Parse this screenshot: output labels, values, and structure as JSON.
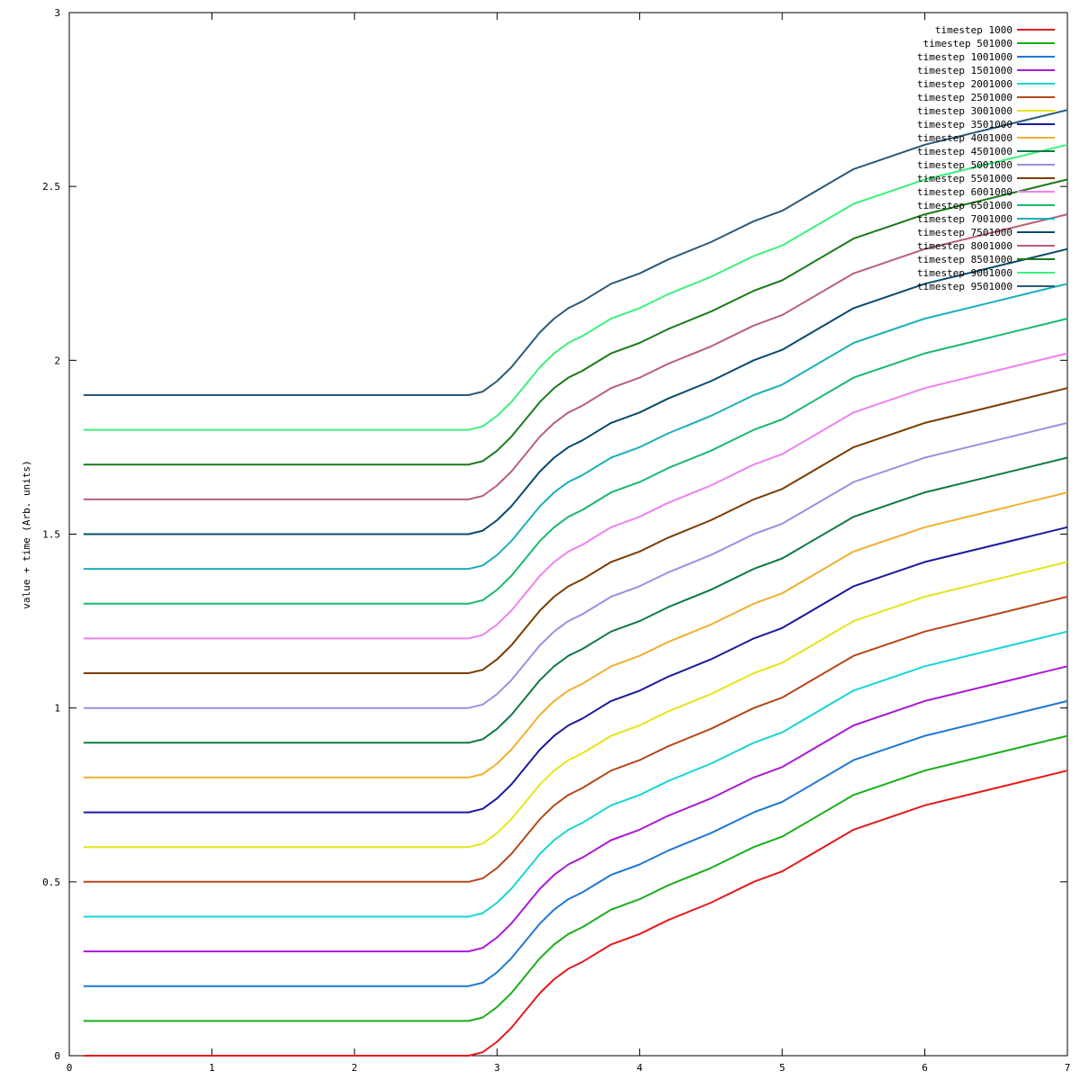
{
  "chart_data": {
    "type": "line",
    "title": "",
    "xlabel": "",
    "ylabel": "value + time (Arb. units)",
    "xlim": [
      0,
      7
    ],
    "ylim": [
      0,
      3
    ],
    "xticks": [
      "0",
      "1",
      "2",
      "3",
      "4",
      "5",
      "6",
      "7"
    ],
    "yticks": [
      "0",
      "0.5",
      "1",
      "1.5",
      "2",
      "2.5",
      "3"
    ],
    "grid": false,
    "legend_position": "top-right",
    "x": [
      0.1,
      2.8,
      2.9,
      3.0,
      3.1,
      3.2,
      3.3,
      3.4,
      3.5,
      3.6,
      3.8,
      4.0,
      4.2,
      4.5,
      4.8,
      5.0,
      5.5,
      6.0,
      6.5,
      7.0
    ],
    "base_curve": [
      0.0,
      0.0,
      0.01,
      0.04,
      0.08,
      0.13,
      0.18,
      0.22,
      0.25,
      0.27,
      0.32,
      0.35,
      0.39,
      0.44,
      0.5,
      0.53,
      0.65,
      0.72,
      0.77,
      0.82
    ],
    "series": [
      {
        "name": "timestep 1000",
        "offset": 0.0,
        "color": "#e41a1c"
      },
      {
        "name": "timestep 501000",
        "offset": 0.1,
        "color": "#1aaf1a"
      },
      {
        "name": "timestep 1001000",
        "offset": 0.2,
        "color": "#1f78d4"
      },
      {
        "name": "timestep 1501000",
        "offset": 0.3,
        "color": "#aa1ad4"
      },
      {
        "name": "timestep 2001000",
        "offset": 0.4,
        "color": "#1ad4d4"
      },
      {
        "name": "timestep 2501000",
        "offset": 0.5,
        "color": "#b5471a"
      },
      {
        "name": "timestep 3001000",
        "offset": 0.6,
        "color": "#e5e51a"
      },
      {
        "name": "timestep 3501000",
        "offset": 0.7,
        "color": "#1a1a9e"
      },
      {
        "name": "timestep 4001000",
        "offset": 0.8,
        "color": "#f0b030"
      },
      {
        "name": "timestep 4501000",
        "offset": 0.9,
        "color": "#0f7a44"
      },
      {
        "name": "timestep 5001000",
        "offset": 1.0,
        "color": "#9d8fe0"
      },
      {
        "name": "timestep 5501000",
        "offset": 1.1,
        "color": "#7a3d00"
      },
      {
        "name": "timestep 6001000",
        "offset": 1.2,
        "color": "#ee82ee"
      },
      {
        "name": "timestep 6501000",
        "offset": 1.3,
        "color": "#1ab86e"
      },
      {
        "name": "timestep 7001000",
        "offset": 1.4,
        "color": "#1ab0b8"
      },
      {
        "name": "timestep 7501000",
        "offset": 1.5,
        "color": "#0a4a6e"
      },
      {
        "name": "timestep 8001000",
        "offset": 1.6,
        "color": "#b8607a"
      },
      {
        "name": "timestep 8501000",
        "offset": 1.7,
        "color": "#1a7a1a"
      },
      {
        "name": "timestep 9001000",
        "offset": 1.8,
        "color": "#3df07a"
      },
      {
        "name": "timestep 9501000",
        "offset": 1.9,
        "color": "#2a5a7a"
      }
    ]
  }
}
